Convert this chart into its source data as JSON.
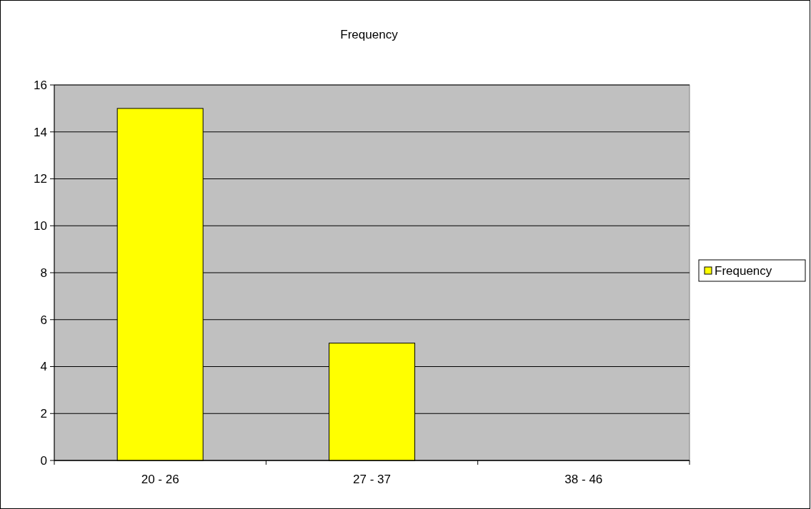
{
  "chart_data": {
    "type": "bar",
    "title": "Frequency",
    "categories": [
      "20 - 26",
      "27 - 37",
      "38 - 46"
    ],
    "series": [
      {
        "name": "Frequency",
        "color": "#ffff00",
        "values": [
          15,
          5,
          0
        ]
      }
    ],
    "ylim": [
      0,
      16
    ],
    "yticks": [
      0,
      2,
      4,
      6,
      8,
      10,
      12,
      14,
      16
    ],
    "grid": "y",
    "legend": "right"
  }
}
